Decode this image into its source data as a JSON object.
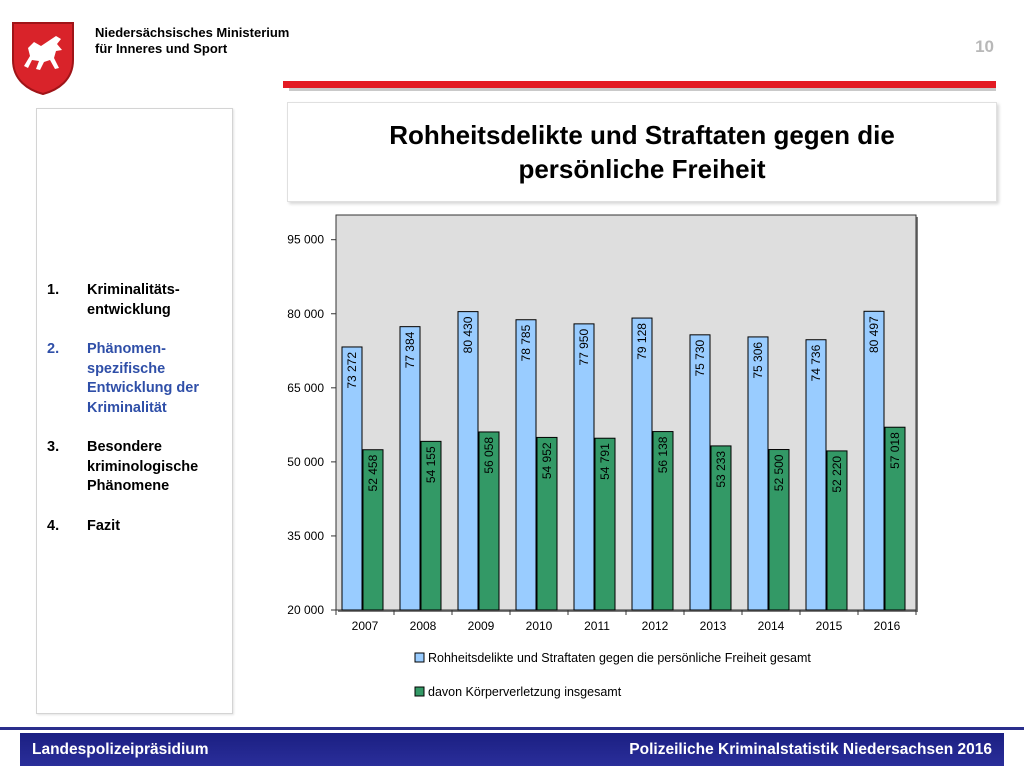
{
  "header": {
    "ministry_line1": "Niedersächsisches Ministerium",
    "ministry_line2": "für Inneres und Sport",
    "page_number": "10"
  },
  "title": {
    "line1": "Rohheitsdelikte und Straftaten gegen die",
    "line2": "persönliche Freiheit"
  },
  "sidebar": {
    "items": [
      {
        "num": "1.",
        "label": "Kriminalitäts-entwicklung",
        "active": false
      },
      {
        "num": "2.",
        "label": "Phänomen-spezifische Entwicklung der Kriminalität",
        "active": true
      },
      {
        "num": "3.",
        "label": "Besondere kriminologische Phänomene",
        "active": false
      },
      {
        "num": "4.",
        "label": "Fazit",
        "active": false
      }
    ]
  },
  "footer": {
    "left": "Landespolizeipräsidium",
    "right": "Polizeiliche Kriminalstatistik Niedersachsen 2016"
  },
  "colors": {
    "accent_red": "#e31b23",
    "series1": "#99ccff",
    "series2": "#339966",
    "footer_blue": "#1b1f82",
    "active_nav": "#2f4fa8"
  },
  "chart_data": {
    "type": "bar",
    "categories": [
      "2007",
      "2008",
      "2009",
      "2010",
      "2011",
      "2012",
      "2013",
      "2014",
      "2015",
      "2016"
    ],
    "series": [
      {
        "name": "Rohheitsdelikte und Straftaten gegen die persönliche Freiheit gesamt",
        "values": [
          73272,
          77384,
          80430,
          78785,
          77950,
          79128,
          75730,
          75306,
          74736,
          80497
        ],
        "labels": [
          "73 272",
          "77 384",
          "80 430",
          "78 785",
          "77 950",
          "79 128",
          "75 730",
          "75 306",
          "74 736",
          "80 497"
        ],
        "color": "#99ccff"
      },
      {
        "name": "davon Körperverletzung insgesamt",
        "values": [
          52458,
          54155,
          56058,
          54952,
          54791,
          56138,
          53233,
          52500,
          52220,
          57018
        ],
        "labels": [
          "52 458",
          "54 155",
          "56 058",
          "54 952",
          "54 791",
          "56 138",
          "53 233",
          "52 500",
          "52 220",
          "57 018"
        ],
        "color": "#339966"
      }
    ],
    "yticks": [
      "20 000",
      "35 000",
      "50 000",
      "65 000",
      "80 000",
      "95 000"
    ],
    "ytick_values": [
      20000,
      35000,
      50000,
      65000,
      80000,
      95000
    ],
    "ylim": [
      20000,
      100000
    ],
    "grid": false,
    "legend": "bottom"
  }
}
